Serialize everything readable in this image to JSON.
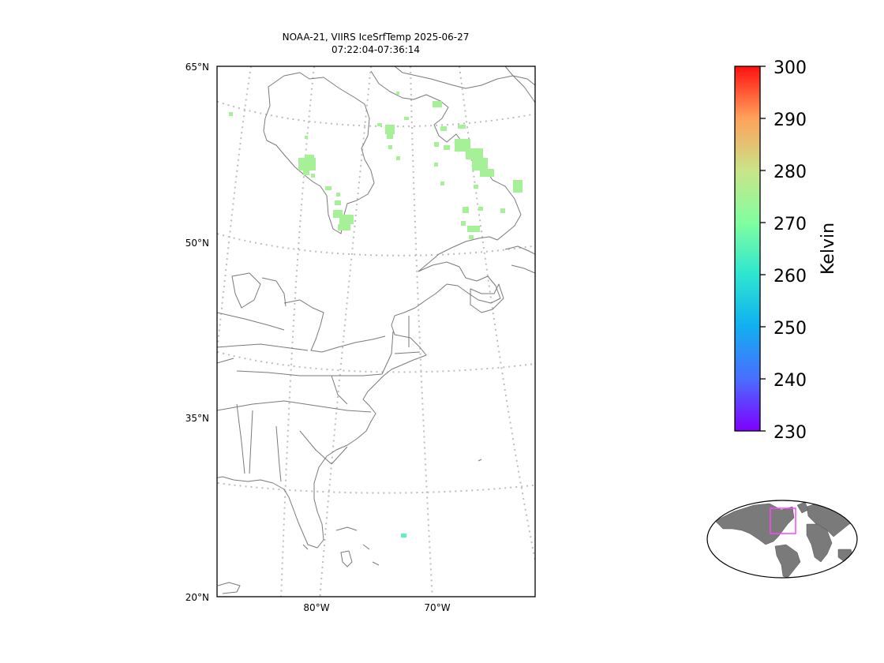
{
  "title_line1": "NOAA-21, VIIRS IceSrfTemp 2025-06-27",
  "title_line2": "07:22:04-07:36:14",
  "lat_labels": [
    "65°N",
    "50°N",
    "35°N",
    "20°N"
  ],
  "lon_labels": [
    "80°W",
    "70°W"
  ],
  "colorbar": {
    "label": "Kelvin",
    "ticks": [
      "300",
      "290",
      "280",
      "270",
      "260",
      "250",
      "240",
      "230"
    ],
    "min": 230,
    "max": 300,
    "colormap": "rainbow"
  },
  "colors": {
    "ice_pixels": "#a6f197",
    "ice_pixel_warm": "#5ef2b6",
    "coastline": "#7a7a7a",
    "graticule": "#bdbdbd",
    "inset_land": "#7a7a7a",
    "inset_box": "#ff44ff"
  },
  "observations": [
    {
      "lat": 52.2,
      "lon": -71.5,
      "kelvin": 271
    },
    {
      "lat": 55.5,
      "lon": -62.5,
      "kelvin": 271
    },
    {
      "lat": 58.3,
      "lon": -64.5,
      "kelvin": 271
    },
    {
      "lat": 24.6,
      "lon": -72.8,
      "kelvin": 264
    }
  ]
}
